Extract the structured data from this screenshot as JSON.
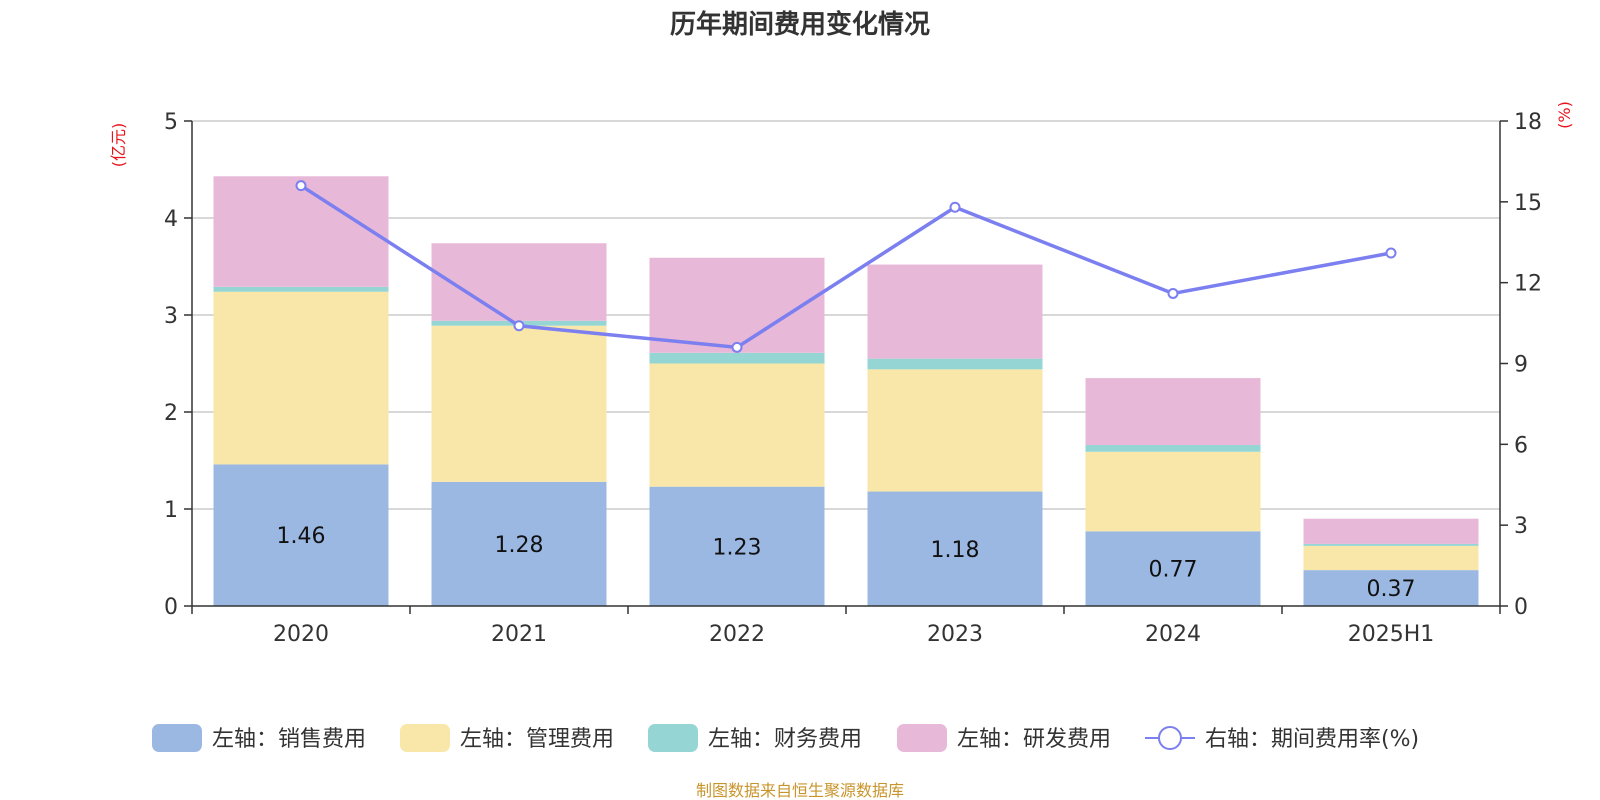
{
  "chart_data": {
    "type": "bar",
    "title": "历年期间费用变化情况",
    "categories": [
      "2020",
      "2021",
      "2022",
      "2023",
      "2024",
      "2025H1"
    ],
    "left_axis": {
      "unit": "(亿元)",
      "ylim": [
        0,
        5
      ],
      "ticks": [
        "0",
        "1",
        "2",
        "3",
        "4",
        "5"
      ]
    },
    "right_axis": {
      "unit": "(%)",
      "ylim": [
        0,
        18
      ],
      "ticks": [
        "0",
        "3",
        "6",
        "9",
        "12",
        "15",
        "18"
      ]
    },
    "grid": true,
    "legend_position": "bottom",
    "series": [
      {
        "name": "左轴：销售费用",
        "axis": "left",
        "stacked": true,
        "color": "#9bb8e2",
        "values": [
          1.46,
          1.28,
          1.23,
          1.18,
          0.77,
          0.37
        ],
        "labels": [
          "1.46",
          "1.28",
          "1.23",
          "1.18",
          "0.77",
          "0.37"
        ]
      },
      {
        "name": "左轴：管理费用",
        "axis": "left",
        "stacked": true,
        "color": "#f8e7a8",
        "values": [
          1.78,
          1.61,
          1.27,
          1.26,
          0.82,
          0.25
        ]
      },
      {
        "name": "左轴：财务费用",
        "axis": "left",
        "stacked": true,
        "color": "#95d5d3",
        "values": [
          0.05,
          0.05,
          0.11,
          0.11,
          0.07,
          0.02
        ]
      },
      {
        "name": "左轴：研发费用",
        "axis": "left",
        "stacked": true,
        "color": "#e8b8d8",
        "values": [
          1.14,
          0.8,
          0.98,
          0.97,
          0.69,
          0.26
        ]
      },
      {
        "name": "右轴：期间费用率(%)",
        "axis": "right",
        "type": "line",
        "color": "#7b7fef",
        "values": [
          15.6,
          10.4,
          9.6,
          14.8,
          11.6,
          13.1
        ]
      }
    ]
  },
  "source": "制图数据来自恒生聚源数据库"
}
